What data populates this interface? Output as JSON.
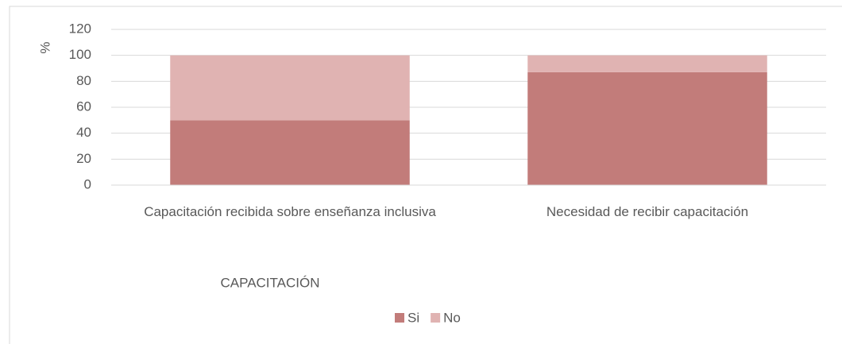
{
  "chart_data": {
    "type": "stacked_bar",
    "categories": [
      "Capacitación recibida sobre enseñanza inclusiva",
      "Necesidad de recibir capacitación"
    ],
    "series": [
      {
        "name": "Si",
        "color": "#c27c7a",
        "values": [
          50,
          87
        ]
      },
      {
        "name": "No",
        "color": "#e0b3b2",
        "values": [
          50,
          13
        ]
      }
    ],
    "y_label": "%",
    "x_label": "CAPACITACIÓN",
    "ylim": [
      0,
      120
    ],
    "yticks": [
      0,
      20,
      40,
      60,
      80,
      100,
      120
    ],
    "grid": true,
    "legend": "bottom"
  }
}
